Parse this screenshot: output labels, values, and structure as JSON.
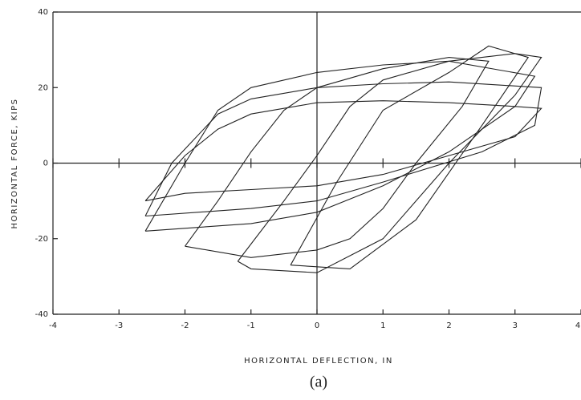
{
  "chart_data": {
    "type": "line",
    "xlabel": "HORIZONTAL DEFLECTION, IN",
    "ylabel": "HORIZONTAL FORCE, KIPS",
    "caption": "(a)",
    "xlim": [
      -4,
      4
    ],
    "ylim": [
      -40,
      40
    ],
    "xticks": [
      -4,
      -3,
      -2,
      -1,
      0,
      1,
      2,
      3,
      4
    ],
    "yticks": [
      -40,
      -20,
      0,
      20,
      40
    ],
    "series": [
      {
        "color": "#222222",
        "x": [
          -2.6,
          -2,
          -1.5,
          -1,
          0,
          1,
          2,
          3,
          3.4,
          3,
          2,
          1,
          0,
          -1,
          -2,
          -2.6
        ],
        "values": [
          -10,
          2,
          9,
          13,
          16,
          16.5,
          16,
          15,
          14.5,
          7,
          2,
          -3,
          -6,
          -7,
          -8,
          -10
        ]
      },
      {
        "color": "#222222",
        "x": [
          -2.6,
          -2.2,
          -1.5,
          -1,
          0,
          1,
          2,
          3.4,
          3.3,
          2.5,
          1,
          0,
          -1,
          -2.6
        ],
        "values": [
          -14,
          0,
          13,
          17,
          20,
          21,
          21.5,
          20,
          10,
          3,
          -5,
          -10,
          -12,
          -14
        ]
      },
      {
        "color": "#222222",
        "x": [
          -2.6,
          -2,
          -1.5,
          -1,
          0,
          1,
          2,
          3.3,
          3,
          2,
          1,
          0,
          -1,
          -2.6
        ],
        "values": [
          -18,
          0,
          14,
          20,
          24,
          26,
          27,
          23,
          15,
          3,
          -6,
          -13,
          -16,
          -18
        ]
      },
      {
        "color": "#222222",
        "x": [
          -2,
          -1.5,
          -1,
          -0.5,
          0,
          1,
          2,
          2.6,
          2.2,
          1.5,
          1,
          0.5,
          0,
          -1,
          -2
        ],
        "values": [
          -22,
          -10,
          3,
          14,
          20,
          25,
          28,
          27,
          15,
          0,
          -12,
          -20,
          -23,
          -25,
          -22
        ]
      },
      {
        "color": "#222222",
        "x": [
          -1.2,
          -0.5,
          0,
          0.5,
          1,
          2,
          3,
          3.4,
          3,
          2,
          1,
          0,
          -1,
          -1.2
        ],
        "values": [
          -26,
          -10,
          2,
          15,
          22,
          27,
          29,
          28,
          18,
          0,
          -20,
          -29,
          -28,
          -26
        ]
      },
      {
        "color": "#222222",
        "x": [
          -0.4,
          0.3,
          1,
          2,
          2.6,
          3.2,
          2.5,
          1.5,
          0.5,
          -0.4
        ],
        "values": [
          -27,
          -5,
          14,
          24,
          31,
          28,
          10,
          -15,
          -28,
          -27
        ]
      }
    ]
  }
}
